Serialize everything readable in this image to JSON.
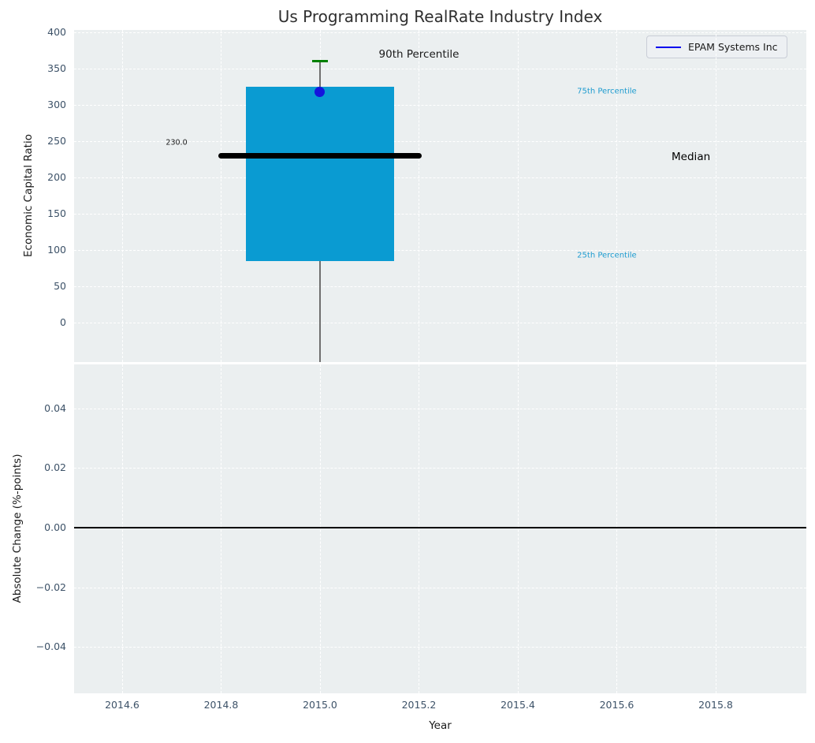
{
  "figure": {
    "background": "#ffffff",
    "axes_background": "#ebeff0",
    "grid_color": "#ffffff",
    "tick_color": "#3d5268"
  },
  "legend": {
    "label": "EPAM Systems Inc",
    "line_color": "#0000ee"
  },
  "chart_data": [
    {
      "type": "box",
      "title": "Us Programming RealRate Industry Index",
      "ylabel": "Economic Capital Ratio",
      "x_center": 2015.0,
      "box_width": 0.3,
      "median_line_halfwidth": 0.205,
      "values": {
        "p25": 85,
        "median": 230,
        "p75": 325,
        "p90": 360,
        "company_value": 318
      },
      "median_label": "230.0",
      "colors": {
        "box_fill": "#0a9bd2",
        "median_line": "#000000",
        "whisker": "#6f6f6f",
        "p90_cap": "#008000",
        "company_dot": "#1414dd",
        "percentile_text": "#1d9bcf"
      },
      "ylim": [
        -54.3,
        403.3
      ],
      "yticks": [
        0,
        50,
        100,
        150,
        200,
        250,
        300,
        350,
        400
      ],
      "yticklabels": [
        "0",
        "50",
        "100",
        "150",
        "200",
        "250",
        "300",
        "350",
        "400"
      ],
      "grid": true,
      "legend_entries": [
        "EPAM Systems Inc"
      ],
      "legend_position": "upper right",
      "annotations": [
        {
          "text": "90th Percentile",
          "x": 2015.2,
          "y": 370,
          "color": "#1a1a1a",
          "size": 13.5
        },
        {
          "text": "75th Percentile",
          "x": 2015.58,
          "y": 318,
          "color": "#1d9bcf",
          "size": 10
        },
        {
          "text": "Median",
          "x": 2015.75,
          "y": 228,
          "color": "#000000",
          "size": 13.5
        },
        {
          "text": "25th Percentile",
          "x": 2015.58,
          "y": 92,
          "color": "#1d9bcf",
          "size": 10
        },
        {
          "text": "230.0",
          "x": 2014.71,
          "y": 248,
          "color": "#1a1a1a",
          "size": 9.5
        }
      ]
    },
    {
      "type": "line",
      "ylabel": "Absolute Change (%-points)",
      "xlabel": "Year",
      "zero_line_y": 0.0,
      "zero_line_color": "#000000",
      "ylim": [
        -0.0556,
        0.0548
      ],
      "yticks": [
        0.04,
        0.02,
        0.0,
        -0.02,
        -0.04
      ],
      "yticklabels": [
        "0.04",
        "0.02",
        "0.00",
        "−0.02",
        "−0.04"
      ],
      "xticks": [
        2014.6,
        2014.8,
        2015.0,
        2015.2,
        2015.4,
        2015.6,
        2015.8
      ],
      "xticklabels": [
        "2014.6",
        "2014.8",
        "2015.0",
        "2015.2",
        "2015.4",
        "2015.6",
        "2015.8"
      ],
      "xlim": [
        2014.5028,
        2015.9833
      ],
      "grid": true
    }
  ]
}
